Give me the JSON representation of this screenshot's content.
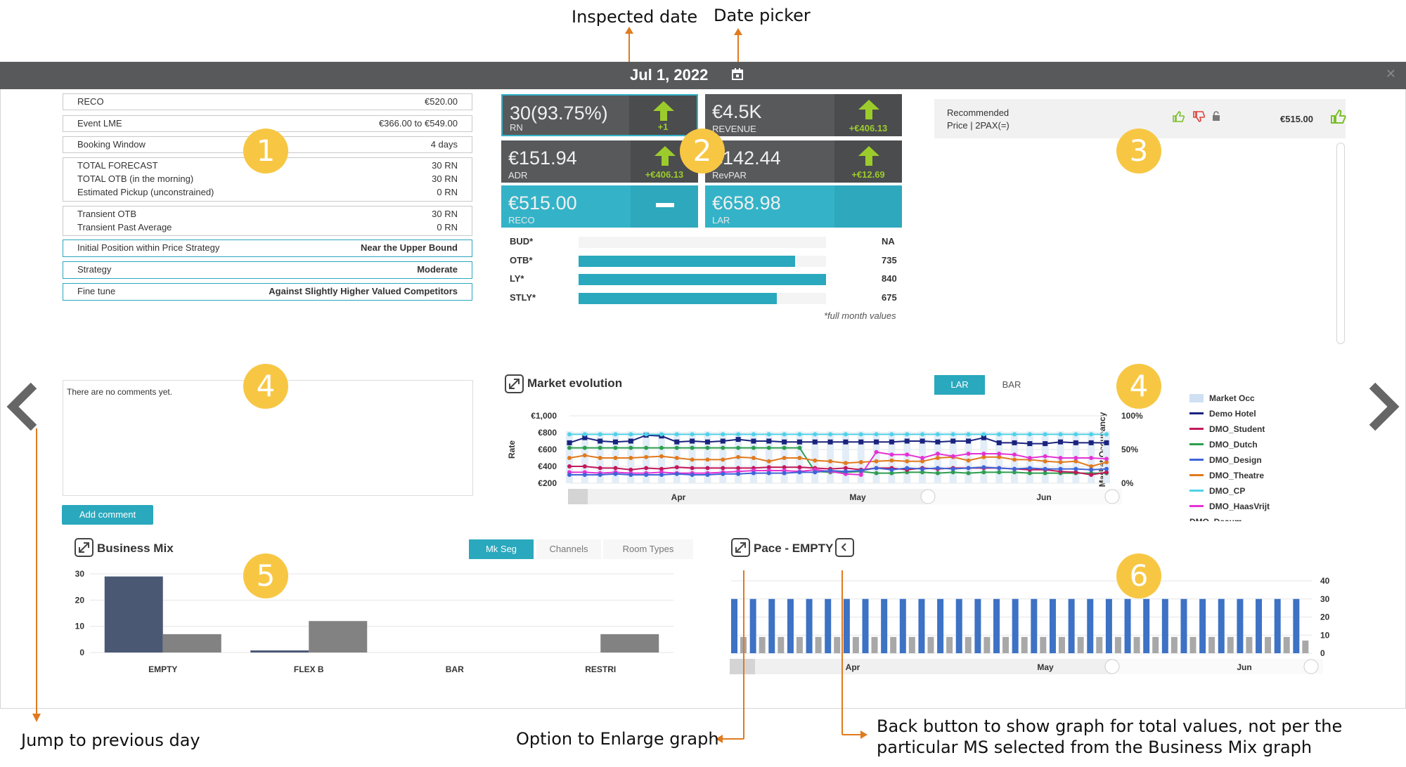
{
  "callouts": {
    "inspected_date": "Inspected date",
    "date_picker": "Date picker",
    "prev_day": "Jump to previous day",
    "enlarge": "Option to Enlarge graph",
    "back_button_line1": "Back button to show graph for total values, not per the",
    "back_button_line2": "particular MS selected from the Business Mix graph"
  },
  "header": {
    "date": "Jul 1, 2022",
    "close_icon": "close-icon",
    "calendar_icon": "calendar-icon"
  },
  "info": {
    "reco_label": "RECO",
    "reco_value": "€520.00",
    "event_label": "Event LME",
    "event_value": "€366.00 to €549.00",
    "booking_label": "Booking Window",
    "booking_value": "4 days",
    "forecast_label": "TOTAL FORECAST",
    "forecast_value": "30 RN",
    "otb_label": "TOTAL OTB (in the morning)",
    "otb_value": "30 RN",
    "pickup_label": "Estimated Pickup (unconstrained)",
    "pickup_value": "0 RN",
    "transient_otb_label": "Transient OTB",
    "transient_otb_value": "30 RN",
    "transient_avg_label": "Transient Past Average",
    "transient_avg_value": "0 RN",
    "initial_label": "Initial Position within Price Strategy",
    "initial_value": "Near the Upper Bound",
    "strategy_label": "Strategy",
    "strategy_value": "Moderate",
    "finetune_label": "Fine tune",
    "finetune_value": "Against Slightly Higher Valued Competitors"
  },
  "kpis": {
    "rn": {
      "value": "30(93.75%)",
      "label": "RN",
      "delta": "+1"
    },
    "revenue": {
      "value": "€4.5K",
      "label": "REVENUE",
      "delta": "+€406.13"
    },
    "adr": {
      "value": "€151.94",
      "label": "ADR",
      "delta": "+€406.13"
    },
    "revpar": {
      "value": "€142.44",
      "label": "RevPAR",
      "delta": "+€12.69"
    },
    "reco": {
      "value": "€515.00",
      "label": "RECO",
      "delta": "—"
    },
    "lar": {
      "value": "€658.98",
      "label": "LAR"
    }
  },
  "month_bars": {
    "rows": [
      {
        "label": "BUD*",
        "value": "NA",
        "fill": 0
      },
      {
        "label": "OTB*",
        "value": "735",
        "fill": 0.875
      },
      {
        "label": "LY*",
        "value": "840",
        "fill": 1.0
      },
      {
        "label": "STLY*",
        "value": "675",
        "fill": 0.8
      }
    ],
    "note": "*full month values"
  },
  "recommended": {
    "line1": "Recommended",
    "line2": "Price | 2PAX(=)",
    "value": "€515.00"
  },
  "badges": [
    "1",
    "2",
    "3",
    "4",
    "4",
    "5",
    "6"
  ],
  "comments": {
    "empty": "There are no comments yet.",
    "add_button": "Add comment"
  },
  "market": {
    "title": "Market evolution",
    "tabs": [
      "LAR",
      "BAR"
    ],
    "active_tab": "LAR",
    "y_left_label": "Rate",
    "y_right_label": "Market Occupancy",
    "y_left_ticks": [
      "€1,000",
      "€800",
      "€600",
      "€400",
      "€200"
    ],
    "y_right_ticks": [
      "100%",
      "50%",
      "0%"
    ],
    "x_ticks": [
      "Apr",
      "May",
      "Jun"
    ],
    "legend": [
      {
        "name": "Market Occ",
        "color": "#cfe0f3"
      },
      {
        "name": "Demo Hotel",
        "color": "#1a237e"
      },
      {
        "name": "DMO_Student",
        "color": "#c2185b"
      },
      {
        "name": "DMO_Dutch",
        "color": "#2e9e4f"
      },
      {
        "name": "DMO_Design",
        "color": "#3f64d8"
      },
      {
        "name": "DMO_Theatre",
        "color": "#e07a1e"
      },
      {
        "name": "DMO_CP",
        "color": "#4fd2e8"
      },
      {
        "name": "DMO_HaasVrijt",
        "color": "#e433d4"
      }
    ],
    "legend_truncated": "DMO_Deaum"
  },
  "business_mix": {
    "title": "Business Mix",
    "tabs": [
      "Mk Seg",
      "Channels",
      "Room Types"
    ],
    "active_tab": "Mk Seg"
  },
  "pace": {
    "title": "Pace - EMPTY",
    "y_ticks": [
      "40",
      "30",
      "20",
      "10",
      "0"
    ],
    "x_ticks": [
      "Apr",
      "May",
      "Jun"
    ]
  },
  "chart_data": [
    {
      "type": "bar",
      "title": "Business Mix",
      "categories": [
        "EMPTY",
        "FLEX B",
        "BAR",
        "RESTRI"
      ],
      "series": [
        {
          "values": [
            29,
            0.8,
            0,
            0
          ]
        },
        {
          "values": [
            7,
            12,
            0,
            7
          ]
        }
      ],
      "ylim": [
        0,
        30
      ],
      "yticks": [
        0,
        10,
        20,
        30
      ],
      "colors": [
        "#4a5874",
        "#828282"
      ]
    },
    {
      "type": "bar",
      "title": "Pace - EMPTY",
      "series": [
        {
          "values": [
            30,
            30,
            30,
            30,
            30,
            30,
            30,
            30,
            30,
            30,
            30,
            30,
            30,
            30,
            30,
            30,
            30,
            30,
            30,
            30,
            30,
            30,
            30,
            30,
            30,
            30,
            30,
            30,
            30,
            30,
            30
          ]
        },
        {
          "values": [
            9,
            9,
            9,
            9,
            9,
            9,
            9,
            9,
            9,
            9,
            9,
            9,
            9,
            9,
            9,
            9,
            9,
            9,
            9,
            9,
            9,
            9,
            9,
            9,
            9,
            9,
            9,
            9,
            9,
            9,
            7
          ]
        }
      ],
      "ylim": [
        0,
        40
      ],
      "colors": [
        "#3d72c4",
        "#a8a8a8"
      ]
    },
    {
      "type": "line",
      "title": "Market evolution",
      "ylabel": "Rate",
      "ylim": [
        200,
        1000
      ],
      "series": [
        {
          "name": "Demo Hotel",
          "values": [
            680,
            740,
            700,
            690,
            700,
            770,
            760,
            690,
            700,
            690,
            700,
            720,
            700,
            700,
            690,
            690,
            690,
            690,
            690,
            690,
            690,
            690,
            700,
            700,
            690,
            700,
            700,
            740,
            680,
            680,
            670,
            670,
            690,
            680,
            680,
            680
          ]
        },
        {
          "name": "DMO_CP",
          "values": [
            780,
            780,
            780,
            780,
            780,
            780,
            780,
            780,
            780,
            780,
            780,
            780,
            780,
            780,
            780,
            780,
            780,
            780,
            780,
            780,
            780,
            780,
            780,
            780,
            780,
            780,
            780,
            780,
            780,
            780,
            780,
            780,
            780,
            780,
            780,
            780
          ]
        },
        {
          "name": "DMO_Dutch",
          "values": [
            620,
            620,
            620,
            620,
            620,
            620,
            620,
            620,
            620,
            620,
            620,
            620,
            620,
            620,
            620,
            620,
            340,
            330,
            330,
            340,
            320,
            320,
            330,
            330,
            320,
            330,
            320,
            330,
            330,
            330,
            320,
            320,
            320,
            320,
            320,
            320
          ]
        },
        {
          "name": "DMO_Theatre",
          "values": [
            500,
            530,
            500,
            500,
            500,
            510,
            520,
            500,
            480,
            480,
            480,
            510,
            500,
            460,
            500,
            500,
            470,
            460,
            440,
            450,
            460,
            470,
            460,
            460,
            500,
            510,
            470,
            510,
            510,
            480,
            480,
            460,
            450,
            460,
            400,
            450
          ]
        },
        {
          "name": "DMO_Student",
          "values": [
            400,
            400,
            380,
            380,
            360,
            380,
            370,
            390,
            380,
            380,
            380,
            380,
            380,
            390,
            390,
            390,
            380,
            370,
            380,
            360,
            380,
            380,
            360,
            380,
            370,
            380,
            380,
            380,
            380,
            370,
            360,
            360,
            340,
            330,
            300,
            330
          ]
        },
        {
          "name": "DMO_HaasVrijt",
          "values": [
            330,
            330,
            320,
            330,
            320,
            320,
            330,
            320,
            320,
            320,
            330,
            340,
            350,
            350,
            350,
            340,
            360,
            340,
            310,
            300,
            570,
            540,
            540,
            500,
            550,
            520,
            550,
            550,
            550,
            540,
            500,
            520,
            500,
            500,
            500,
            490
          ]
        },
        {
          "name": "DMO_Design",
          "values": [
            300,
            300,
            300,
            310,
            300,
            300,
            300,
            310,
            300,
            300,
            310,
            310,
            320,
            320,
            320,
            330,
            330,
            350,
            340,
            350,
            380,
            360,
            380,
            370,
            380,
            370,
            380,
            390,
            380,
            370,
            380,
            370,
            370,
            370,
            360,
            370
          ]
        }
      ]
    }
  ]
}
